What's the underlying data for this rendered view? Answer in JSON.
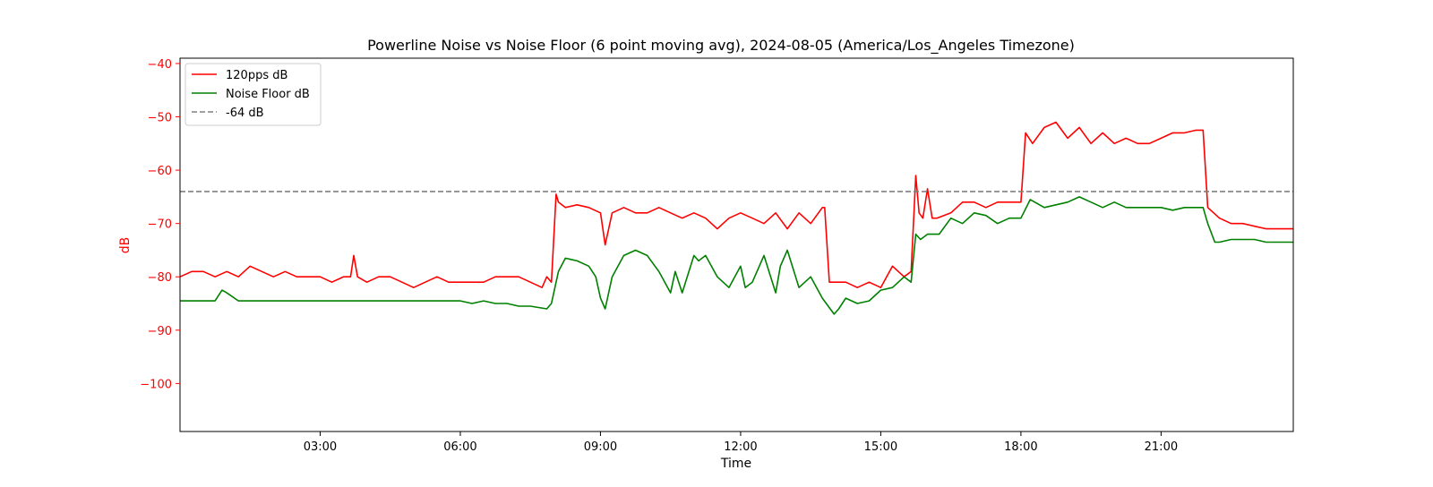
{
  "chart_data": {
    "type": "line",
    "title": "Powerline Noise vs Noise Floor (6 point moving avg), 2024-08-05 (America/Los_Angeles Timezone)",
    "xlabel": "Time",
    "ylabel": "dB",
    "x_unit": "hours",
    "xlim": [
      0.0,
      23.83
    ],
    "ylim": [
      -109,
      -39
    ],
    "x_ticks": [
      {
        "value": 3,
        "label": "03:00"
      },
      {
        "value": 6,
        "label": "06:00"
      },
      {
        "value": 9,
        "label": "09:00"
      },
      {
        "value": 12,
        "label": "12:00"
      },
      {
        "value": 15,
        "label": "15:00"
      },
      {
        "value": 18,
        "label": "18:00"
      },
      {
        "value": 21,
        "label": "21:00"
      }
    ],
    "y_ticks": [
      {
        "value": -40,
        "label": "−40"
      },
      {
        "value": -50,
        "label": "−50"
      },
      {
        "value": -60,
        "label": "−60"
      },
      {
        "value": -70,
        "label": "−70"
      },
      {
        "value": -80,
        "label": "−80"
      },
      {
        "value": -90,
        "label": "−90"
      },
      {
        "value": -100,
        "label": "−100"
      }
    ],
    "grid": false,
    "legend_position": "top-left",
    "ylabel_color": "#ff0000",
    "series": [
      {
        "name": "120pps dB",
        "color": "#ff0000",
        "style": "solid",
        "x": [
          0.0,
          0.25,
          0.5,
          0.75,
          1.0,
          1.25,
          1.5,
          1.75,
          2.0,
          2.25,
          2.5,
          2.75,
          3.0,
          3.25,
          3.5,
          3.65,
          3.72,
          3.8,
          4.0,
          4.25,
          4.5,
          4.75,
          5.0,
          5.25,
          5.5,
          5.75,
          6.0,
          6.25,
          6.5,
          6.75,
          7.0,
          7.25,
          7.5,
          7.75,
          7.85,
          7.95,
          8.05,
          8.1,
          8.25,
          8.5,
          8.75,
          9.0,
          9.1,
          9.25,
          9.5,
          9.75,
          10.0,
          10.25,
          10.5,
          10.75,
          11.0,
          11.25,
          11.5,
          11.75,
          12.0,
          12.25,
          12.5,
          12.75,
          13.0,
          13.25,
          13.5,
          13.75,
          13.8,
          13.9,
          14.0,
          14.25,
          14.5,
          14.75,
          15.0,
          15.25,
          15.5,
          15.65,
          15.75,
          15.82,
          15.9,
          16.0,
          16.1,
          16.2,
          16.5,
          16.75,
          17.0,
          17.25,
          17.5,
          17.75,
          18.0,
          18.1,
          18.25,
          18.5,
          18.75,
          19.0,
          19.25,
          19.5,
          19.75,
          20.0,
          20.25,
          20.5,
          20.75,
          21.0,
          21.25,
          21.5,
          21.75,
          21.9,
          22.0,
          22.25,
          22.5,
          22.75,
          23.0,
          23.25,
          23.5,
          23.83
        ],
        "values": [
          -80,
          -79,
          -79,
          -80,
          -79,
          -80,
          -78,
          -79,
          -80,
          -79,
          -80,
          -80,
          -80,
          -81,
          -80,
          -80,
          -76,
          -80,
          -81,
          -80,
          -80,
          -81,
          -82,
          -81,
          -80,
          -81,
          -81,
          -81,
          -81,
          -80,
          -80,
          -80,
          -81,
          -82,
          -80,
          -81,
          -64.5,
          -66,
          -67,
          -66.5,
          -67,
          -68,
          -74,
          -68,
          -67,
          -68,
          -68,
          -67,
          -68,
          -69,
          -68,
          -69,
          -71,
          -69,
          -68,
          -69,
          -70,
          -68,
          -71,
          -68,
          -70,
          -67,
          -67,
          -81,
          -81,
          -81,
          -82,
          -81,
          -82,
          -78,
          -80,
          -79,
          -61,
          -68,
          -69,
          -63.5,
          -69,
          -69,
          -68,
          -66,
          -66,
          -67,
          -66,
          -66,
          -66,
          -53,
          -55,
          -52,
          -51,
          -54,
          -52,
          -55,
          -53,
          -55,
          -54,
          -55,
          -55,
          -54,
          -53,
          -53,
          -52.5,
          -52.5,
          -67,
          -69,
          -70,
          -70,
          -70.5,
          -71,
          -71,
          -71
        ]
      },
      {
        "name": "Noise Floor dB",
        "color": "#008000",
        "style": "solid",
        "x": [
          0.0,
          0.5,
          0.75,
          0.9,
          1.0,
          1.25,
          1.5,
          2.0,
          2.5,
          3.0,
          3.5,
          4.0,
          4.5,
          5.0,
          5.5,
          6.0,
          6.25,
          6.5,
          6.75,
          7.0,
          7.25,
          7.5,
          7.85,
          7.95,
          8.1,
          8.25,
          8.5,
          8.75,
          8.9,
          9.0,
          9.1,
          9.25,
          9.5,
          9.75,
          10.0,
          10.25,
          10.5,
          10.6,
          10.75,
          11.0,
          11.1,
          11.25,
          11.5,
          11.75,
          12.0,
          12.1,
          12.25,
          12.5,
          12.75,
          12.85,
          13.0,
          13.25,
          13.5,
          13.75,
          14.0,
          14.1,
          14.25,
          14.5,
          14.75,
          15.0,
          15.25,
          15.5,
          15.65,
          15.75,
          15.85,
          16.0,
          16.25,
          16.5,
          16.75,
          17.0,
          17.25,
          17.5,
          17.75,
          18.0,
          18.2,
          18.5,
          18.75,
          19.0,
          19.25,
          19.5,
          19.75,
          20.0,
          20.25,
          20.5,
          20.75,
          21.0,
          21.25,
          21.5,
          21.75,
          21.9,
          22.0,
          22.15,
          22.25,
          22.5,
          22.75,
          23.0,
          23.25,
          23.5,
          23.83
        ],
        "values": [
          -84.5,
          -84.5,
          -84.5,
          -82.5,
          -83,
          -84.5,
          -84.5,
          -84.5,
          -84.5,
          -84.5,
          -84.5,
          -84.5,
          -84.5,
          -84.5,
          -84.5,
          -84.5,
          -85,
          -84.5,
          -85,
          -85,
          -85.5,
          -85.5,
          -86,
          -85,
          -79,
          -76.5,
          -77,
          -78,
          -80,
          -84,
          -86,
          -80,
          -76,
          -75,
          -76,
          -79,
          -83,
          -79,
          -83,
          -76,
          -77,
          -76,
          -80,
          -82,
          -78,
          -82,
          -81,
          -76,
          -83,
          -78,
          -75,
          -82,
          -80,
          -84,
          -87,
          -86,
          -84,
          -85,
          -84.5,
          -82.5,
          -82,
          -80,
          -81,
          -72,
          -73,
          -72,
          -72,
          -69,
          -70,
          -68,
          -68.5,
          -70,
          -69,
          -69,
          -65.5,
          -67,
          -66.5,
          -66,
          -65,
          -66,
          -67,
          -66,
          -67,
          -67,
          -67,
          -67,
          -67.5,
          -67,
          -67,
          -67,
          -70,
          -73.5,
          -73.5,
          -73,
          -73,
          -73,
          -73.5,
          -73.5,
          -73.5
        ]
      },
      {
        "name": "-64 dB",
        "color": "#808080",
        "style": "dashed",
        "x": [
          0.0,
          23.83
        ],
        "values": [
          -64,
          -64
        ]
      }
    ]
  }
}
